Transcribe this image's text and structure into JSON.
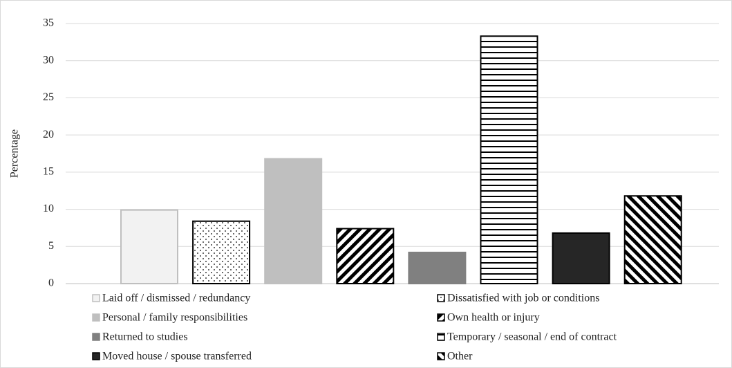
{
  "chart_data": {
    "type": "bar",
    "y_label": "Percentage",
    "categories": [
      null
    ],
    "series": [
      {
        "name": "Laid off / dismissed / redundancy",
        "color": "#f2f2f2",
        "border": "#bfbfbf",
        "pattern": null,
        "values": [
          9.9
        ]
      },
      {
        "name": "Dissatisfied with job or conditions",
        "color": "#ffffff",
        "border": "#000000",
        "pattern": "dots",
        "values": [
          8.4
        ]
      },
      {
        "name": "Personal / family responsibilities",
        "color": "#bfbfbf",
        "border": "#bfbfbf",
        "pattern": null,
        "values": [
          16.8
        ]
      },
      {
        "name": "Own health or injury",
        "color": "#ffffff",
        "border": "#000000",
        "pattern": "diag-down",
        "values": [
          7.4
        ]
      },
      {
        "name": "Returned to studies",
        "color": "#808080",
        "border": "#808080",
        "pattern": null,
        "values": [
          4.2
        ]
      },
      {
        "name": "Temporary / seasonal / end of contract",
        "color": "#ffffff",
        "border": "#000000",
        "pattern": "horizontal",
        "values": [
          33.3
        ]
      },
      {
        "name": "Moved house / spouse transferred",
        "color": "#262626",
        "border": "#000000",
        "pattern": null,
        "values": [
          6.8
        ]
      },
      {
        "name": "Other",
        "color": "#ffffff",
        "border": "#000000",
        "pattern": "diag-up",
        "values": [
          11.8
        ]
      }
    ],
    "ylim": [
      0,
      35
    ],
    "yticks": [
      0,
      5,
      10,
      15,
      20,
      25,
      30,
      35
    ],
    "grid": true,
    "legend": "bottom"
  }
}
